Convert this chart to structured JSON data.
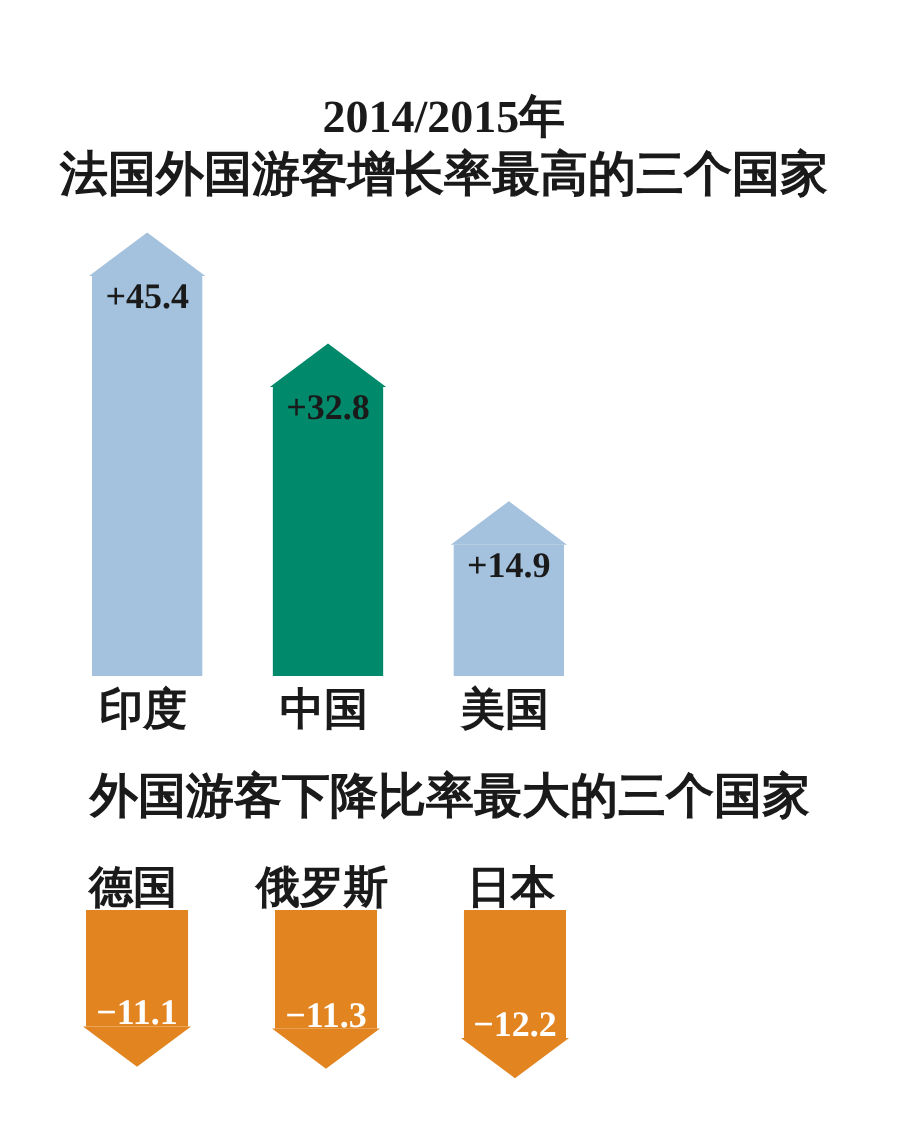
{
  "chart_data": [
    {
      "type": "bar",
      "title": "2014/2015年",
      "subtitle": "法国外国游客增长率最高的三个国家",
      "categories": [
        "印度",
        "中国",
        "美国"
      ],
      "values": [
        45.4,
        32.8,
        14.9
      ],
      "colors": [
        "#a4c2dd",
        "#00896a",
        "#a4c2dd"
      ],
      "value_labels": [
        "+45.4",
        "+32.8",
        "+14.9"
      ]
    },
    {
      "type": "bar",
      "title": "外国游客下降比率最大的三个国家",
      "categories": [
        "德国",
        "俄罗斯",
        "日本"
      ],
      "values": [
        -11.1,
        -11.3,
        -12.2
      ],
      "color": "#e2841f",
      "value_labels": [
        "−11.1",
        "−11.3",
        "−12.2"
      ]
    }
  ]
}
